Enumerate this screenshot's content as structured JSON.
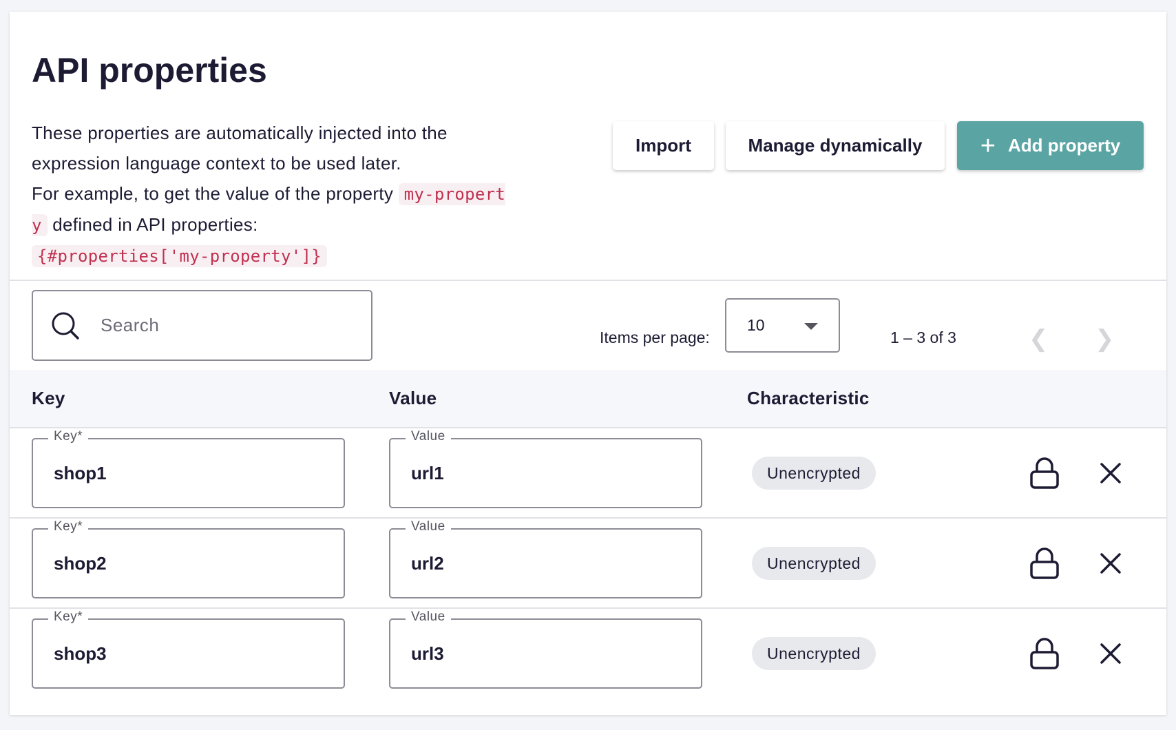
{
  "header": {
    "title": "API properties",
    "description_line1": "These properties are automatically injected into the expression language context to be used later.",
    "description_line2_before": "For example, to get the value of the property",
    "description_code_inline": "my-property",
    "description_line2_after": "defined in API properties:",
    "description_code_block": "{#properties['my-property']}"
  },
  "toolbar": {
    "import_label": "Import",
    "manage_label": "Manage dynamically",
    "add_label": "Add property",
    "add_icon": "plus-icon",
    "accent_color": "#5aa5a3"
  },
  "filter": {
    "search_placeholder": "Search",
    "items_per_page_label": "Items per page:",
    "items_per_page_value": "10",
    "range_label": "1 – 3 of 3"
  },
  "table": {
    "columns": [
      "Key",
      "Value",
      "Characteristic"
    ],
    "key_field_label": "Key*",
    "value_field_label": "Value",
    "rows": [
      {
        "key": "shop1",
        "value": "url1",
        "characteristic": "Unencrypted"
      },
      {
        "key": "shop2",
        "value": "url2",
        "characteristic": "Unencrypted"
      },
      {
        "key": "shop3",
        "value": "url3",
        "characteristic": "Unencrypted"
      }
    ]
  }
}
